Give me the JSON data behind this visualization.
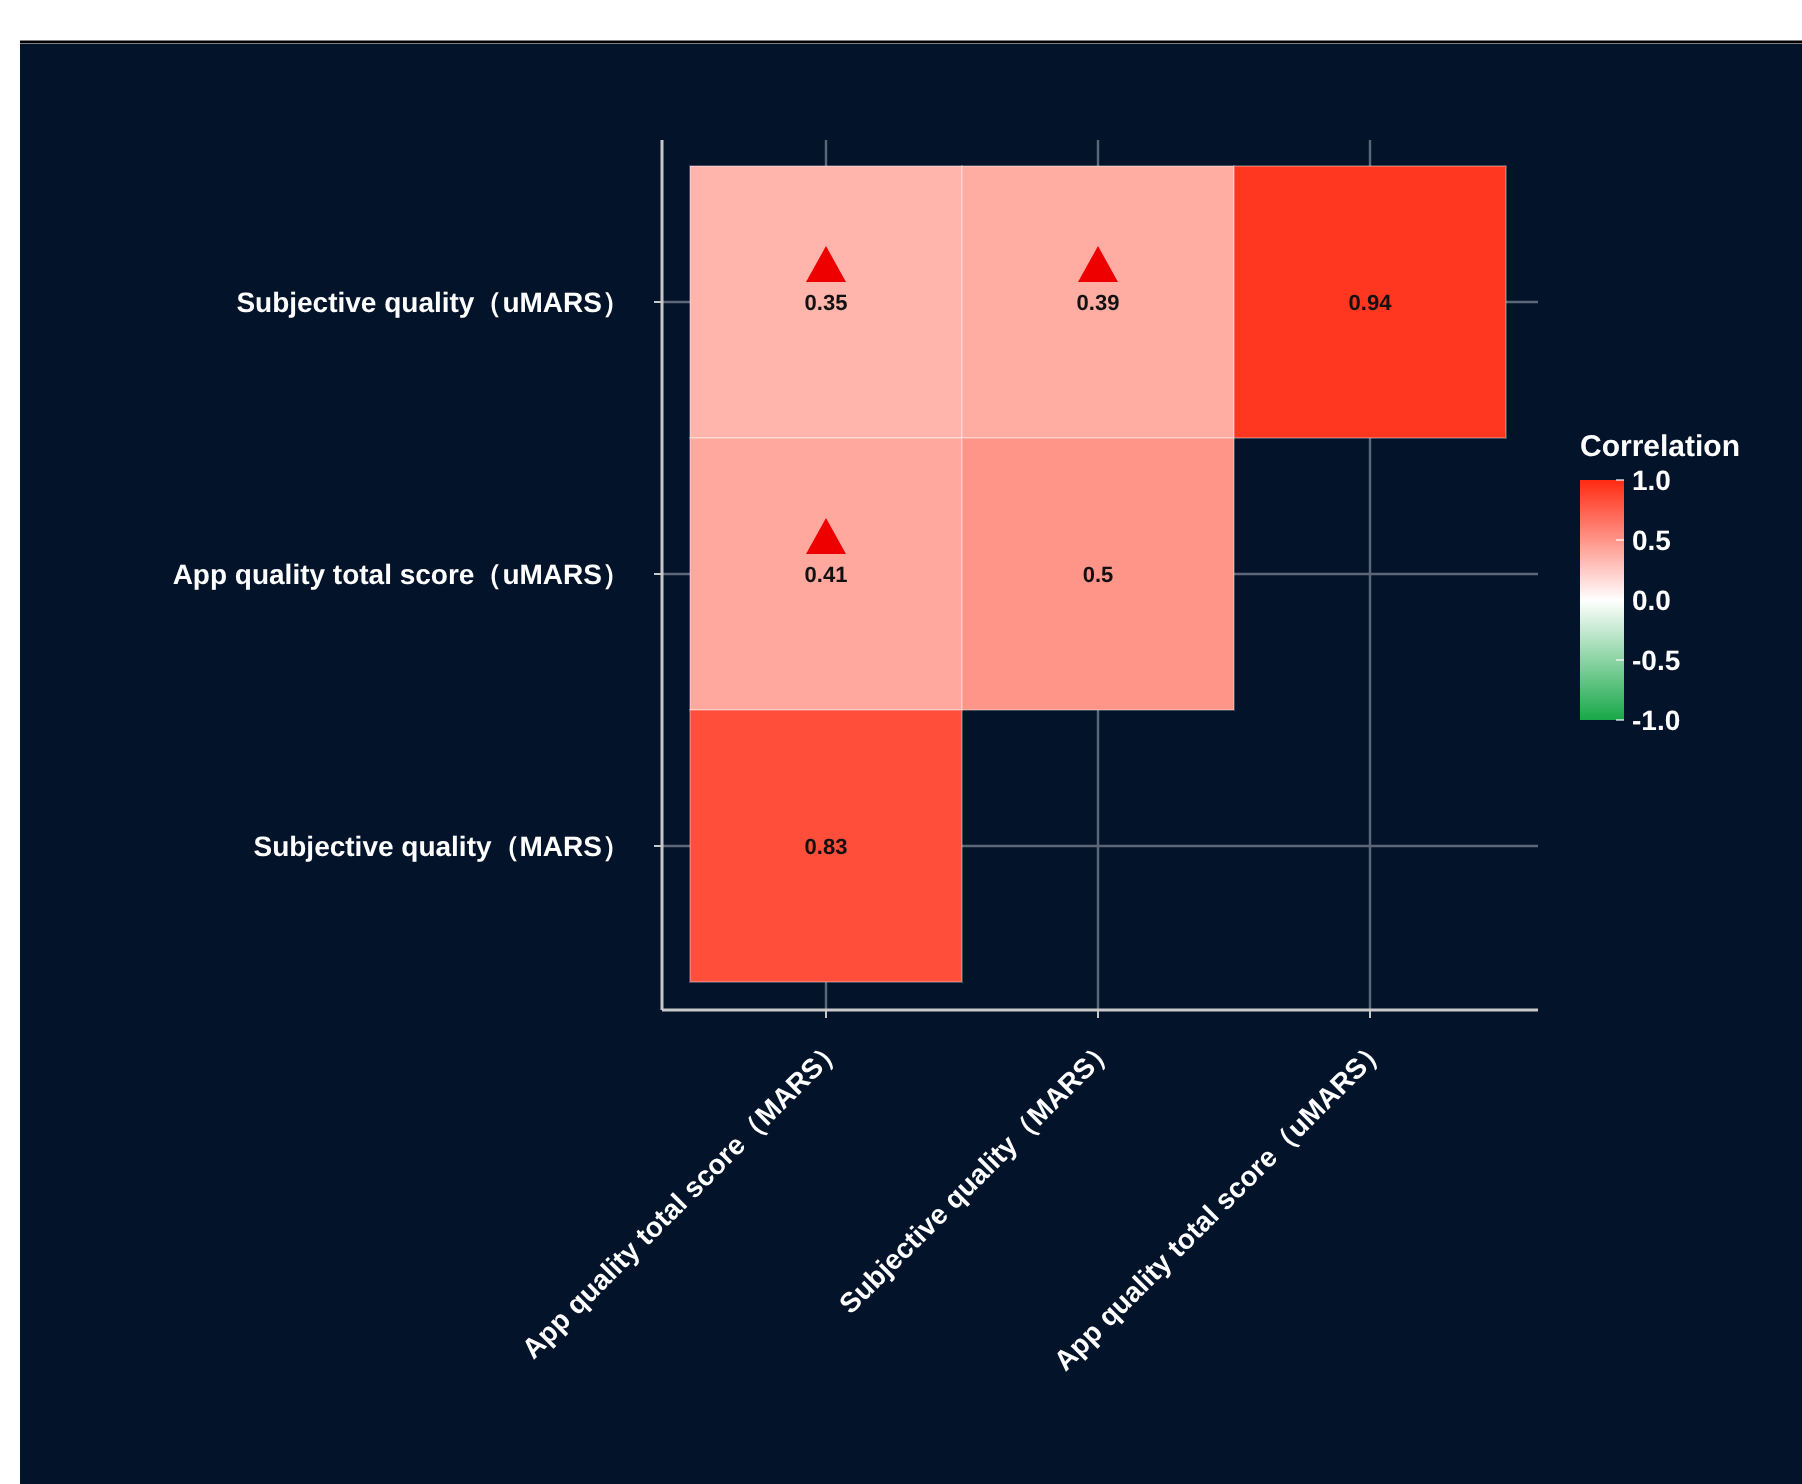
{
  "chart_data": {
    "type": "heatmap",
    "categories": [
      "App quality total score（MARS）",
      "Subjective quality（MARS）",
      "App quality total score（uMARS）"
    ],
    "y_categories": [
      "Subjective quality（uMARS）",
      "App quality total score（uMARS）",
      "Subjective quality（MARS）"
    ],
    "cells": [
      [
        0.35,
        0.39,
        0.94
      ],
      [
        0.41,
        0.5,
        null
      ],
      [
        0.83,
        null,
        null
      ]
    ],
    "clim": [
      -1,
      1
    ],
    "cticks": [
      {
        "value": 1,
        "label": "1.0"
      },
      0.5,
      {
        "value": 0,
        "label": "0.0"
      },
      -0.5,
      {
        "value": -1,
        "label": "-1.0"
      }
    ],
    "clabel": "Correlation",
    "grid": true,
    "data_labels": true
  }
}
